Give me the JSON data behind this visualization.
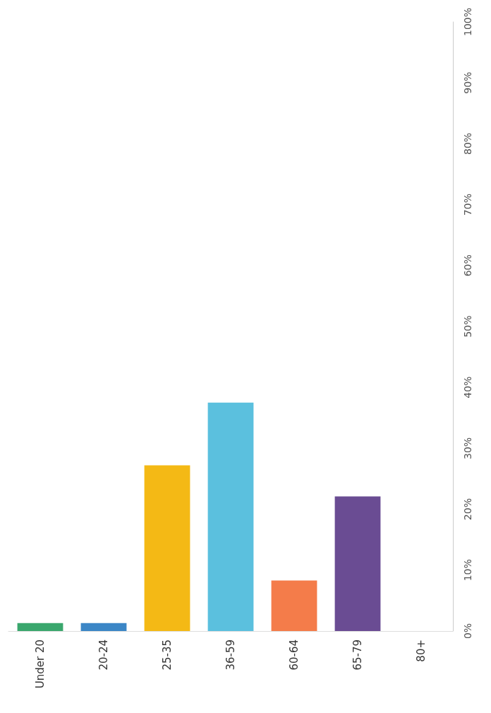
{
  "chart_data": {
    "type": "bar",
    "categories": [
      "Under 20",
      "20-24",
      "25-35",
      "36-59",
      "60-64",
      "65-79",
      "80+"
    ],
    "values": [
      1.3,
      1.3,
      27.2,
      37.5,
      8.3,
      22.1,
      0
    ],
    "colors": [
      "#3aa76d",
      "#3b86c6",
      "#f4b915",
      "#5bc0de",
      "#f47c4a",
      "#6a4c93",
      "#cccccc"
    ],
    "ylim": [
      0,
      100
    ],
    "yticks": [
      {
        "value": 0,
        "label": "0%"
      },
      {
        "value": 10,
        "label": "10%"
      },
      {
        "value": 20,
        "label": "20%"
      },
      {
        "value": 30,
        "label": "30%"
      },
      {
        "value": 40,
        "label": "40%"
      },
      {
        "value": 50,
        "label": "50%"
      },
      {
        "value": 60,
        "label": "60%"
      },
      {
        "value": 70,
        "label": "70%"
      },
      {
        "value": 80,
        "label": "80%"
      },
      {
        "value": 90,
        "label": "90%"
      },
      {
        "value": 100,
        "label": "100%"
      }
    ],
    "grid": false
  }
}
